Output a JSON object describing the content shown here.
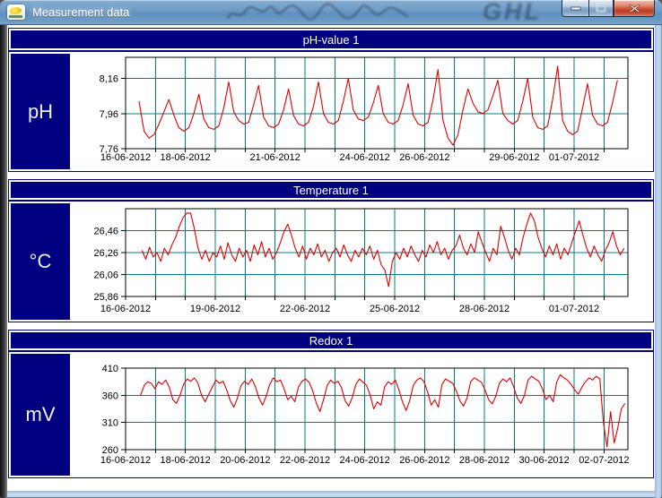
{
  "window": {
    "title": "Measurement data",
    "glass_watermark": "GHL",
    "controls": {
      "minimize": "Minimize",
      "maximize": "Maximize",
      "close": "Close"
    }
  },
  "colors": {
    "panel_navy": "#000080",
    "grid_teal": "#008080",
    "frame_black": "#000000",
    "series_red": "#e00000",
    "chart_bg": "#ffffff",
    "text_on_panel": "#ffffff"
  },
  "chart_data": [
    {
      "type": "line",
      "title": "pH-value 1",
      "unit": "pH",
      "legend": "none",
      "grid": true,
      "y_axis": {
        "min": 7.76,
        "max": 8.28,
        "ticks": [
          {
            "value": 8.16,
            "label": "8,16",
            "grid": true
          },
          {
            "value": 7.96,
            "label": "7,96",
            "grid": true
          },
          {
            "value": 7.76,
            "label": "7,76",
            "grid": false
          }
        ]
      },
      "x_axis": {
        "total_days": 16.8,
        "tick_interval_days": 1,
        "labels": [
          {
            "day": 0,
            "label": "16-06-2012"
          },
          {
            "day": 2,
            "label": "18-06-2012"
          },
          {
            "day": 5,
            "label": "21-06-2012"
          },
          {
            "day": 8,
            "label": "24-06-2012"
          },
          {
            "day": 10,
            "label": "26-06-2012"
          },
          {
            "day": 13,
            "label": "29-06-2012"
          },
          {
            "day": 15,
            "label": "01-07-2012"
          }
        ]
      },
      "series": {
        "name": "pH-value 1",
        "color": "#e00000",
        "x_start": 0.45,
        "x_end": 16.45,
        "values": [
          8.03,
          7.86,
          7.82,
          7.84,
          7.9,
          7.97,
          8.04,
          7.95,
          7.88,
          7.86,
          7.88,
          7.96,
          8.07,
          7.93,
          7.88,
          7.87,
          7.89,
          7.99,
          8.14,
          7.97,
          7.92,
          7.9,
          7.91,
          8.01,
          8.12,
          7.94,
          7.89,
          7.88,
          7.9,
          7.98,
          8.1,
          7.95,
          7.9,
          7.89,
          7.91,
          8.0,
          8.14,
          7.96,
          7.91,
          7.9,
          7.92,
          8.03,
          8.16,
          7.98,
          7.93,
          7.92,
          7.94,
          8.02,
          8.12,
          7.96,
          7.91,
          7.9,
          7.92,
          8.01,
          8.13,
          7.95,
          7.9,
          7.89,
          7.91,
          8.04,
          8.21,
          7.92,
          7.82,
          7.78,
          7.84,
          7.98,
          8.1,
          8.02,
          7.97,
          7.96,
          7.98,
          8.06,
          8.15,
          7.96,
          7.92,
          7.9,
          7.92,
          8.03,
          8.16,
          7.94,
          7.88,
          7.87,
          7.89,
          8.04,
          8.23,
          7.92,
          7.86,
          7.84,
          7.86,
          7.99,
          8.13,
          7.95,
          7.9,
          7.89,
          7.91,
          8.02,
          8.15
        ]
      }
    },
    {
      "type": "line",
      "title": "Temperature 1",
      "unit": "°C",
      "legend": "none",
      "grid": true,
      "y_axis": {
        "min": 25.86,
        "max": 26.66,
        "ticks": [
          {
            "value": 26.46,
            "label": "26,46",
            "grid": true
          },
          {
            "value": 26.26,
            "label": "26,26",
            "grid": true
          },
          {
            "value": 26.06,
            "label": "26,06",
            "grid": true
          },
          {
            "value": 25.86,
            "label": "25,86",
            "grid": false
          }
        ]
      },
      "x_axis": {
        "total_days": 16.8,
        "tick_interval_days": 1,
        "labels": [
          {
            "day": 0,
            "label": "16-06-2012"
          },
          {
            "day": 3,
            "label": "19-06-2012"
          },
          {
            "day": 6,
            "label": "22-06-2012"
          },
          {
            "day": 9,
            "label": "25-06-2012"
          },
          {
            "day": 12,
            "label": "28-06-2012"
          },
          {
            "day": 15,
            "label": "01-07-2012"
          }
        ]
      },
      "series": {
        "name": "Temperature 1",
        "color": "#e00000",
        "x_start": 0.55,
        "x_end": 16.67,
        "values": [
          26.28,
          26.2,
          26.31,
          26.22,
          26.26,
          26.18,
          26.3,
          26.24,
          26.33,
          26.4,
          26.5,
          26.58,
          26.62,
          26.62,
          26.48,
          26.3,
          26.2,
          26.28,
          26.18,
          26.26,
          26.22,
          26.32,
          26.2,
          26.35,
          26.24,
          26.18,
          26.3,
          26.22,
          26.28,
          26.18,
          26.33,
          26.24,
          26.36,
          26.22,
          26.3,
          26.2,
          26.26,
          26.35,
          26.45,
          26.52,
          26.42,
          26.3,
          26.22,
          26.32,
          26.2,
          26.3,
          26.24,
          26.34,
          26.22,
          26.28,
          26.18,
          26.26,
          26.3,
          26.22,
          26.33,
          26.24,
          26.18,
          26.28,
          26.22,
          26.3,
          26.24,
          26.32,
          26.2,
          26.28,
          26.15,
          26.1,
          25.95,
          26.18,
          26.26,
          26.2,
          26.3,
          26.22,
          26.32,
          26.24,
          26.18,
          26.28,
          26.22,
          26.33,
          26.26,
          26.36,
          26.24,
          26.3,
          26.2,
          26.28,
          26.32,
          26.42,
          26.3,
          26.24,
          26.34,
          26.26,
          26.45,
          26.35,
          26.26,
          26.18,
          26.3,
          26.24,
          26.5,
          26.4,
          26.28,
          26.2,
          26.3,
          26.24,
          26.4,
          26.52,
          26.62,
          26.55,
          26.4,
          26.3,
          26.22,
          26.32,
          26.24,
          26.34,
          26.2,
          26.3,
          26.24,
          26.35,
          26.45,
          26.55,
          26.42,
          26.3,
          26.22,
          26.32,
          26.24,
          26.18,
          26.28,
          26.35,
          26.45,
          26.32,
          26.24,
          26.3
        ]
      }
    },
    {
      "type": "line",
      "title": "Redox 1",
      "unit": "mV",
      "legend": "none",
      "grid": true,
      "y_axis": {
        "min": 260,
        "max": 410,
        "ticks": [
          {
            "value": 410,
            "label": "410",
            "grid": false
          },
          {
            "value": 360,
            "label": "360",
            "grid": true
          },
          {
            "value": 310,
            "label": "310",
            "grid": true
          },
          {
            "value": 260,
            "label": "260",
            "grid": false
          }
        ]
      },
      "x_axis": {
        "total_days": 16.8,
        "tick_interval_days": 1,
        "labels": [
          {
            "day": 0,
            "label": "16-06-2012"
          },
          {
            "day": 2,
            "label": "18-06-2012"
          },
          {
            "day": 4,
            "label": "20-06-2012"
          },
          {
            "day": 6,
            "label": "22-06-2012"
          },
          {
            "day": 8,
            "label": "24-06-2012"
          },
          {
            "day": 10,
            "label": "26-06-2012"
          },
          {
            "day": 12,
            "label": "28-06-2012"
          },
          {
            "day": 14,
            "label": "30-06-2012"
          },
          {
            "day": 16,
            "label": "02-07-2012"
          }
        ]
      },
      "series": {
        "name": "Redox 1",
        "color": "#e00000",
        "x_start": 0.5,
        "x_end": 16.7,
        "values": [
          360,
          378,
          385,
          382,
          372,
          385,
          380,
          388,
          375,
          352,
          345,
          360,
          380,
          390,
          386,
          392,
          382,
          360,
          348,
          362,
          375,
          388,
          382,
          386,
          370,
          350,
          338,
          355,
          378,
          386,
          380,
          390,
          376,
          355,
          342,
          358,
          380,
          392,
          385,
          388,
          372,
          352,
          358,
          348,
          375,
          386,
          390,
          384,
          368,
          345,
          330,
          352,
          378,
          388,
          382,
          386,
          374,
          350,
          340,
          356,
          380,
          390,
          384,
          378,
          360,
          335,
          348,
          342,
          375,
          385,
          380,
          388,
          370,
          348,
          332,
          350,
          378,
          388,
          392,
          385,
          366,
          342,
          352,
          338,
          380,
          390,
          386,
          382,
          368,
          350,
          340,
          355,
          385,
          392,
          388,
          384,
          370,
          352,
          344,
          358,
          382,
          390,
          385,
          392,
          375,
          355,
          345,
          360,
          388,
          395,
          390,
          386,
          372,
          352,
          360,
          348,
          385,
          398,
          392,
          388,
          380,
          370,
          362,
          375,
          385,
          392,
          388,
          395,
          390,
          310,
          265,
          330,
          272,
          300,
          335,
          345
        ]
      }
    }
  ]
}
